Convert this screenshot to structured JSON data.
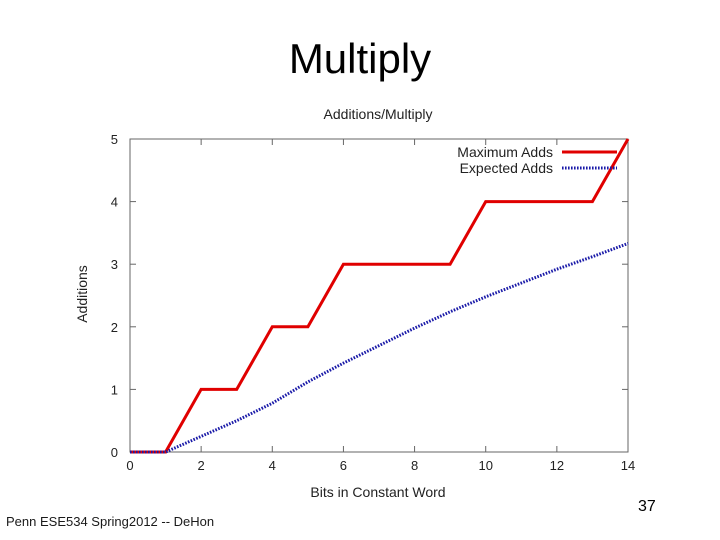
{
  "slide": {
    "title": "Multiply",
    "footer": "Penn ESE534 Spring2012 -- DeHon",
    "page_number": "37"
  },
  "chart_data": {
    "type": "line",
    "title": "Additions/Multiply",
    "xlabel": "Bits in Constant Word",
    "ylabel": "Additions",
    "xlim": [
      0,
      14
    ],
    "ylim": [
      0,
      5
    ],
    "xticks": [
      0,
      2,
      4,
      6,
      8,
      10,
      12,
      14
    ],
    "yticks": [
      0,
      1,
      2,
      3,
      4,
      5
    ],
    "grid": false,
    "legend": "top-right",
    "series": [
      {
        "name": "Maximum Adds",
        "color": "#e00000",
        "dash": "solid",
        "x": [
          0,
          1,
          2,
          3,
          4,
          5,
          6,
          7,
          8,
          9,
          10,
          11,
          12,
          13,
          14
        ],
        "y": [
          0,
          0,
          1,
          1,
          2,
          2,
          3,
          3,
          3,
          3,
          4,
          4,
          4,
          4,
          5
        ]
      },
      {
        "name": "Expected Adds",
        "color": "#1a1aa8",
        "dash": "dotted",
        "x": [
          0,
          1,
          2,
          3,
          4,
          5,
          6,
          7,
          8,
          9,
          10,
          11,
          12,
          13,
          14
        ],
        "y": [
          0,
          0,
          0.25,
          0.5,
          0.78,
          1.12,
          1.42,
          1.7,
          1.98,
          2.24,
          2.48,
          2.7,
          2.92,
          3.12,
          3.33
        ]
      }
    ]
  }
}
